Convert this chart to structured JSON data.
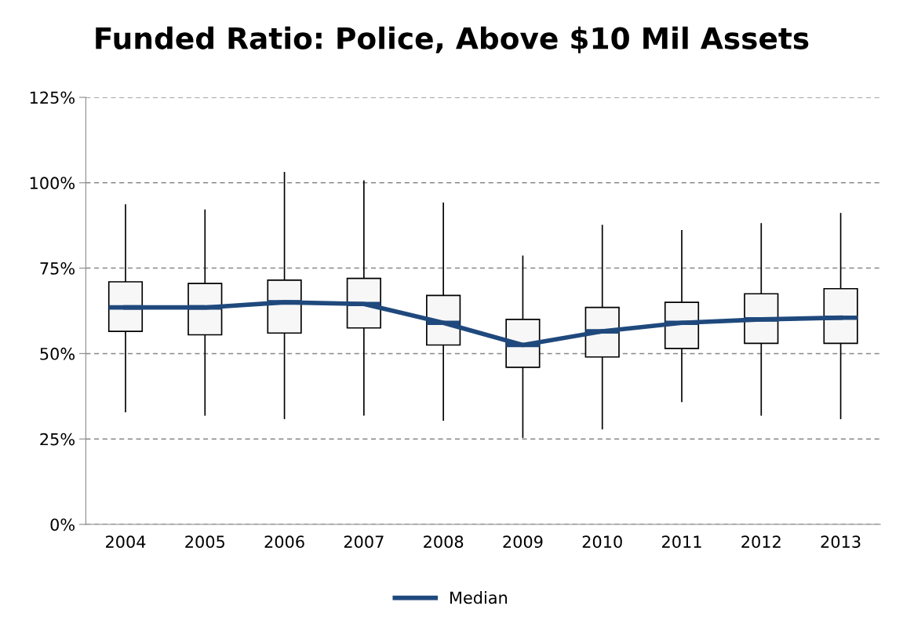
{
  "chart_data": {
    "type": "box",
    "title": "Funded Ratio: Police, Above $10 Mil Assets",
    "categories": [
      "2004",
      "2005",
      "2006",
      "2007",
      "2008",
      "2009",
      "2010",
      "2011",
      "2012",
      "2013"
    ],
    "boxes": [
      {
        "low": 33,
        "q1": 56.5,
        "median": 63.5,
        "q3": 71,
        "high": 93.5
      },
      {
        "low": 32,
        "q1": 55.5,
        "median": 63.5,
        "q3": 70.5,
        "high": 92
      },
      {
        "low": 31,
        "q1": 56,
        "median": 65,
        "q3": 71.5,
        "high": 103
      },
      {
        "low": 32,
        "q1": 57.5,
        "median": 64.5,
        "q3": 72,
        "high": 100.5
      },
      {
        "low": 30.5,
        "q1": 52.5,
        "median": 59,
        "q3": 67,
        "high": 94
      },
      {
        "low": 25.5,
        "q1": 46,
        "median": 52.5,
        "q3": 60,
        "high": 78.5
      },
      {
        "low": 28,
        "q1": 49,
        "median": 56.5,
        "q3": 63.5,
        "high": 87.5
      },
      {
        "low": 36,
        "q1": 51.5,
        "median": 59,
        "q3": 65,
        "high": 86
      },
      {
        "low": 32,
        "q1": 53,
        "median": 60,
        "q3": 67.5,
        "high": 88
      },
      {
        "low": 31,
        "q1": 53,
        "median": 60.5,
        "q3": 69,
        "high": 91
      }
    ],
    "color": "#f7f7f7",
    "series": [
      {
        "name": "Median",
        "type": "line",
        "color": "#1f497d",
        "values": [
          63.5,
          63.5,
          65,
          64.5,
          59,
          52.5,
          56.5,
          59,
          60,
          60.5
        ]
      }
    ],
    "ylim": [
      0,
      125
    ],
    "yticks": [
      {
        "value": 0,
        "label": "0%"
      },
      {
        "value": 25,
        "label": "25%"
      },
      {
        "value": 50,
        "label": "50%"
      },
      {
        "value": 75,
        "label": "75%"
      },
      {
        "value": 100,
        "label": "100%"
      },
      {
        "value": 125,
        "label": "125%"
      }
    ],
    "grid": "y",
    "line_style": "solid",
    "legend": "bottom",
    "marker": "none"
  }
}
